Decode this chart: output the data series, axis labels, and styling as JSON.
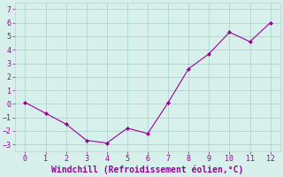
{
  "x": [
    0,
    1,
    2,
    3,
    4,
    5,
    6,
    7,
    8,
    9,
    10,
    11,
    12
  ],
  "y": [
    0.1,
    -0.7,
    -1.5,
    -2.7,
    -2.9,
    -1.8,
    -2.2,
    0.1,
    2.6,
    3.7,
    5.3,
    4.6,
    6.0
  ],
  "line_color": "#990099",
  "marker": "D",
  "marker_size": 2,
  "bg_color": "#d8f0ec",
  "grid_color": "#b0d4cc",
  "xlabel": "Windchill (Refroidissement éolien,°C)",
  "xlabel_color": "#990099",
  "tick_color": "#990099",
  "ylim": [
    -3.5,
    7.5
  ],
  "xlim": [
    -0.5,
    12.5
  ],
  "yticks": [
    -3,
    -2,
    -1,
    0,
    1,
    2,
    3,
    4,
    5,
    6,
    7
  ],
  "xticks": [
    0,
    1,
    2,
    3,
    4,
    5,
    6,
    7,
    8,
    9,
    10,
    11,
    12
  ],
  "xlabel_fontsize": 7,
  "tick_fontsize": 6
}
